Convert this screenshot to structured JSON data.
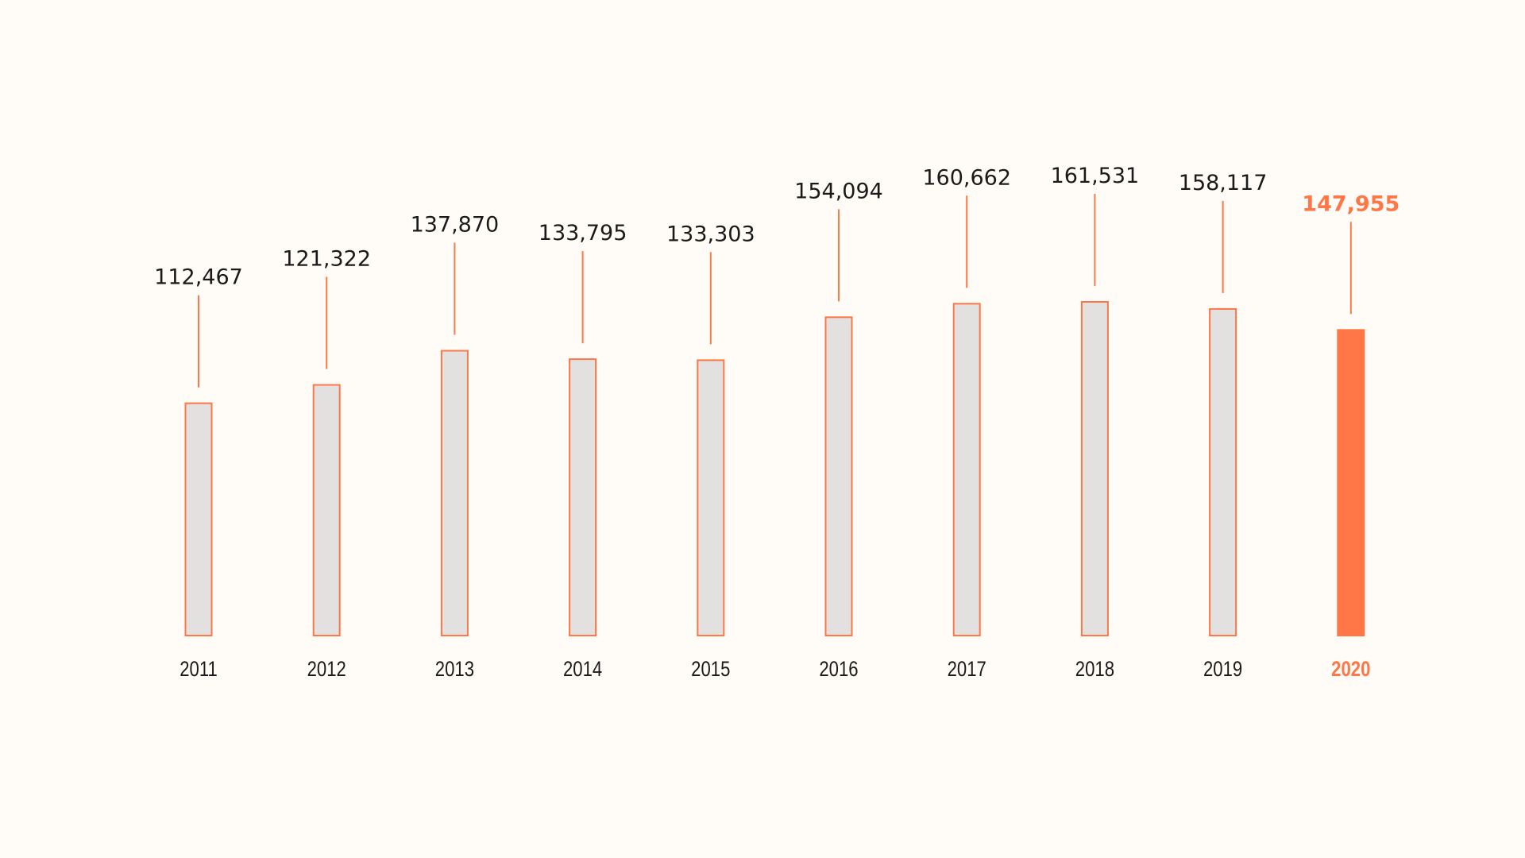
{
  "chart_data": {
    "type": "bar",
    "title": "",
    "xlabel": "",
    "ylabel": "",
    "categories": [
      "2011",
      "2012",
      "2013",
      "2014",
      "2015",
      "2016",
      "2017",
      "2018",
      "2019",
      "2020"
    ],
    "values": [
      112467,
      121322,
      137870,
      133795,
      133303,
      154094,
      160662,
      161531,
      158117,
      147955
    ],
    "value_labels": [
      "112,467",
      "121,322",
      "137,870",
      "133,795",
      "133,303",
      "154,094",
      "160,662",
      "161,531",
      "158,117",
      "147,955"
    ],
    "highlight_index": 9,
    "ylim": [
      0,
      161531
    ],
    "grid": false,
    "legend": "none",
    "colors": {
      "background": "#fffcf7",
      "bar_fill": "#e2e1e0",
      "accent": "#ff7647",
      "text": "#1a1a1a"
    }
  }
}
